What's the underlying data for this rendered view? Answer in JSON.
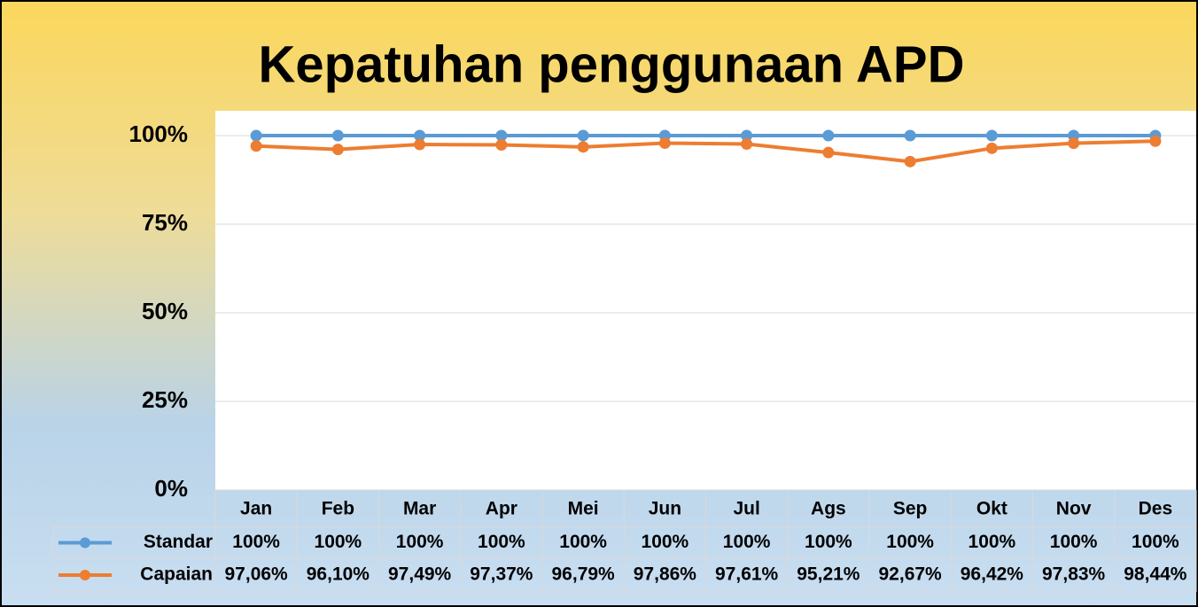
{
  "chart_data": {
    "type": "line",
    "title": "Kepatuhan penggunaan APD",
    "categories": [
      "Jan",
      "Feb",
      "Mar",
      "Apr",
      "Mei",
      "Jun",
      "Jul",
      "Ags",
      "Sep",
      "Okt",
      "Nov",
      "Des"
    ],
    "series": [
      {
        "name": "Standar",
        "color": "#5b9bd5",
        "values": [
          100,
          100,
          100,
          100,
          100,
          100,
          100,
          100,
          100,
          100,
          100,
          100
        ],
        "value_labels": [
          "100%",
          "100%",
          "100%",
          "100%",
          "100%",
          "100%",
          "100%",
          "100%",
          "100%",
          "100%",
          "100%",
          "100%"
        ]
      },
      {
        "name": "Capaian",
        "color": "#ed7d31",
        "values": [
          97.06,
          96.1,
          97.49,
          97.37,
          96.79,
          97.86,
          97.61,
          95.21,
          92.67,
          96.42,
          97.83,
          98.44
        ],
        "value_labels": [
          "97,06%",
          "96,10%",
          "97,49%",
          "97,37%",
          "96,79%",
          "97,86%",
          "97,61%",
          "95,21%",
          "92,67%",
          "96,42%",
          "97,83%",
          "98,44%"
        ]
      }
    ],
    "ylim": [
      0,
      100
    ],
    "yticks": [
      {
        "value": 0,
        "label": "0%"
      },
      {
        "value": 25,
        "label": "25%"
      },
      {
        "value": 50,
        "label": "50%"
      },
      {
        "value": 75,
        "label": "75%"
      },
      {
        "value": 100,
        "label": "100%"
      }
    ],
    "grid": true
  }
}
